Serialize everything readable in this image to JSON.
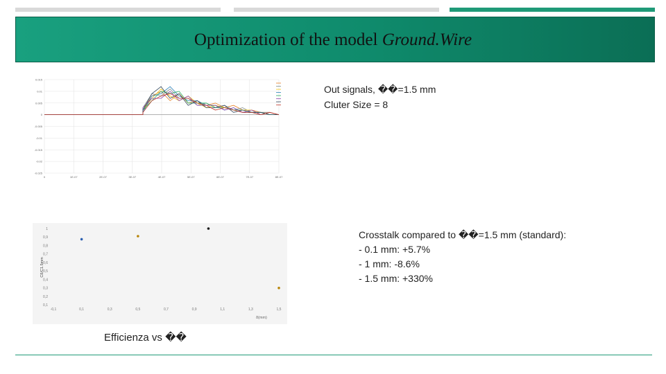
{
  "header": {
    "title_prefix": "Optimization of the model ",
    "title_model": "Ground.Wire"
  },
  "colors": {
    "accent": "#1f9a78",
    "band": "#0f8b6c",
    "scatter_point": "#1a1a1a",
    "highlight_point": "#2b5fb0",
    "end_point": "#b8860b"
  },
  "notes": {
    "out_signals": "Out signals, ��=1.5 mm",
    "cluster_size": "Cluter Size = 8",
    "crosstalk_heading": "Crosstalk compared to ��=1.5 mm (standard):",
    "crosstalk_items": [
      "-   0.1 mm: +5.7%",
      "-   1 mm: -8.6%",
      "-   1.5 mm: +330%"
    ],
    "efficiency_caption": "Efficienza vs ��"
  },
  "chart_data": [
    {
      "type": "line",
      "title": "",
      "xlabel": "",
      "ylabel": "",
      "x_ticks": [
        "0",
        "1E-07",
        "2E-07",
        "3E-07",
        "4E-07",
        "5E-07",
        "6E-07",
        "7E-07",
        "8E-07"
      ],
      "y_ticks": [
        "0.015",
        "0.01",
        "0.005",
        "0",
        "-0.005",
        "-0.01",
        "-0.015",
        "-0.02",
        "-0.025"
      ],
      "ylim": [
        -0.025,
        0.015
      ],
      "xlim": [
        0,
        8e-07
      ],
      "legend_position": "top-right",
      "series": [
        {
          "values": [
            0,
            0,
            0,
            0,
            0,
            0,
            0.002,
            0.008,
            0.01,
            0.006,
            0.009,
            0.005,
            0.006,
            0.004,
            0.005,
            0.003,
            0.004,
            0.002,
            0.002,
            0.001,
            0.001,
            0
          ]
        },
        {
          "values": [
            0,
            0,
            0,
            0,
            0,
            0,
            0.003,
            0.009,
            0.008,
            0.011,
            0.007,
            0.007,
            0.004,
            0.005,
            0.003,
            0.004,
            0.002,
            0.003,
            0.001,
            0.001,
            0.001,
            0
          ]
        },
        {
          "values": [
            0,
            0,
            0,
            0,
            0,
            0,
            0.002,
            0.007,
            0.011,
            0.008,
            0.006,
            0.008,
            0.005,
            0.003,
            0.004,
            0.003,
            0.002,
            0.002,
            0.002,
            0,
            0.001,
            0
          ]
        },
        {
          "values": [
            0,
            0,
            0,
            0,
            0,
            0,
            0.001,
            0.008,
            0.009,
            0.012,
            0.008,
            0.006,
            0.006,
            0.004,
            0.004,
            0.002,
            0.003,
            0.001,
            0.001,
            0.001,
            0,
            0
          ]
        },
        {
          "values": [
            0,
            0,
            0,
            0,
            0,
            0,
            0.002,
            0.006,
            0.01,
            0.009,
            0.01,
            0.005,
            0.005,
            0.005,
            0.003,
            0.003,
            0.002,
            0.002,
            0.001,
            0.001,
            0,
            0
          ]
        },
        {
          "values": [
            0,
            0,
            0,
            0,
            0,
            0,
            0.003,
            0.007,
            0.007,
            0.01,
            0.006,
            0.008,
            0.004,
            0.004,
            0.004,
            0.002,
            0.003,
            0.001,
            0.002,
            0,
            0.001,
            0
          ]
        },
        {
          "values": [
            0,
            0,
            0,
            0,
            0,
            0,
            0.002,
            0.009,
            0.012,
            0.007,
            0.009,
            0.004,
            0.006,
            0.003,
            0.003,
            0.004,
            0.001,
            0.002,
            0.001,
            0.001,
            0,
            0
          ]
        },
        {
          "values": [
            0,
            0,
            0,
            0,
            0,
            0,
            0.001,
            0.006,
            0.008,
            0.009,
            0.007,
            0.007,
            0.005,
            0.004,
            0.002,
            0.003,
            0.002,
            0.001,
            0.001,
            0,
            0.001,
            0
          ]
        }
      ]
    },
    {
      "type": "scatter",
      "xlabel": "δ(mm)",
      "ylabel": "Cδ/C1.5mm",
      "x_ticks": [
        "-0,1",
        "0,1",
        "0,3",
        "0,5",
        "0,7",
        "0,9",
        "1,1",
        "1,3",
        "1,5"
      ],
      "y_ticks": [
        "1",
        "0,9",
        "0,8",
        "0,7",
        "0,6",
        "0,5",
        "0,4",
        "0,3",
        "0,2",
        "0,1"
      ],
      "xlim": [
        -0.1,
        1.5
      ],
      "ylim": [
        0,
        1
      ],
      "points": [
        {
          "x": 0.1,
          "y": 0.86
        },
        {
          "x": 0.5,
          "y": 0.9
        },
        {
          "x": 1.0,
          "y": 1.0
        },
        {
          "x": 1.5,
          "y": 0.22
        }
      ]
    }
  ]
}
